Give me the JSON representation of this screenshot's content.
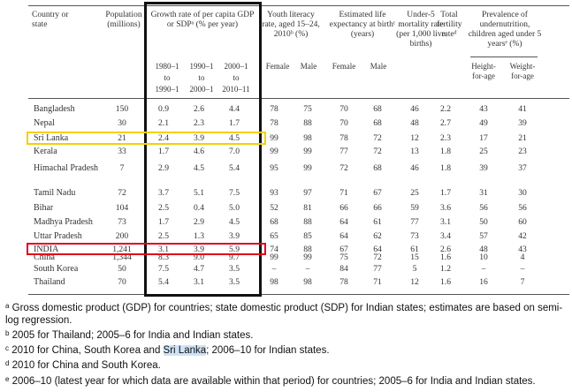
{
  "columns": {
    "country": "Country or state",
    "population": "Population (millions)",
    "growth": "Growth rate of per capita GDP or SDPᵃ (% per year)",
    "growth_periods": [
      "1980–1990",
      "1990–2000",
      "2000–2010"
    ],
    "growth_period_lines": [
      [
        "1980–1",
        "to",
        "1990–1"
      ],
      [
        "1990–1",
        "to",
        "2000–1"
      ],
      [
        "2000–1",
        "to",
        "2010–11"
      ]
    ],
    "literacy": "Youth literacy rate, aged 15–24, 2010ᵇ (%)",
    "literacy_sub": [
      "Female",
      "Male"
    ],
    "life": "Estimated life expectancy at birthᶜ (years)",
    "life_sub": [
      "Female",
      "Male"
    ],
    "u5": "Under-5 mortality rate (per 1,000 live births)",
    "tfr": "Total fertility rateᵈ",
    "undernutrition": "Prevalence of undernutrition, children aged under 5 yearsᵉ (%)",
    "undernutrition_sub": [
      "Height-for-age",
      "Weight-for-age"
    ]
  },
  "rows": [
    {
      "name": "Bangladesh",
      "pop": "150",
      "g1": "0.9",
      "g2": "2.6",
      "g3": "4.4",
      "litF": "78",
      "litM": "75",
      "lifeF": "70",
      "lifeM": "68",
      "u5": "46",
      "tfr": "2.2",
      "hfa": "43",
      "wfa": "41"
    },
    {
      "name": "Nepal",
      "pop": "30",
      "g1": "2.1",
      "g2": "2.3",
      "g3": "1.7",
      "litF": "78",
      "litM": "88",
      "lifeF": "70",
      "lifeM": "68",
      "u5": "48",
      "tfr": "2.7",
      "hfa": "49",
      "wfa": "39"
    },
    {
      "name": "Sri Lanka",
      "pop": "21",
      "g1": "2.4",
      "g2": "3.9",
      "g3": "4.5",
      "litF": "99",
      "litM": "98",
      "lifeF": "78",
      "lifeM": "72",
      "u5": "12",
      "tfr": "2.3",
      "hfa": "17",
      "wfa": "21"
    },
    {
      "name": "Kerala",
      "pop": "33",
      "g1": "1.7",
      "g2": "4.6",
      "g3": "7.0",
      "litF": "99",
      "litM": "99",
      "lifeF": "77",
      "lifeM": "72",
      "u5": "13",
      "tfr": "1.8",
      "hfa": "25",
      "wfa": "23"
    },
    {
      "name": "Himachal Pradesh",
      "pop": "7",
      "g1": "2.9",
      "g2": "4.5",
      "g3": "5.4",
      "litF": "95",
      "litM": "99",
      "lifeF": "72",
      "lifeM": "68",
      "u5": "46",
      "tfr": "1.8",
      "hfa": "39",
      "wfa": "37"
    },
    {
      "name": "Tamil Nadu",
      "pop": "72",
      "g1": "3.7",
      "g2": "5.1",
      "g3": "7.5",
      "litF": "93",
      "litM": "97",
      "lifeF": "71",
      "lifeM": "67",
      "u5": "25",
      "tfr": "1.7",
      "hfa": "31",
      "wfa": "30"
    },
    {
      "name": "Bihar",
      "pop": "104",
      "g1": "2.5",
      "g2": "0.4",
      "g3": "5.0",
      "litF": "52",
      "litM": "81",
      "lifeF": "66",
      "lifeM": "66",
      "u5": "59",
      "tfr": "3.6",
      "hfa": "56",
      "wfa": "56"
    },
    {
      "name": "Madhya Pradesh",
      "pop": "73",
      "g1": "1.7",
      "g2": "2.9",
      "g3": "4.5",
      "litF": "68",
      "litM": "88",
      "lifeF": "64",
      "lifeM": "61",
      "u5": "77",
      "tfr": "3.1",
      "hfa": "50",
      "wfa": "60"
    },
    {
      "name": "Uttar Pradesh",
      "pop": "200",
      "g1": "2.5",
      "g2": "1.3",
      "g3": "3.9",
      "litF": "65",
      "litM": "85",
      "lifeF": "64",
      "lifeM": "62",
      "u5": "73",
      "tfr": "3.4",
      "hfa": "57",
      "wfa": "42"
    },
    {
      "name": "INDIA",
      "pop": "1,241",
      "g1": "3.1",
      "g2": "3.9",
      "g3": "5.9",
      "litF": "74",
      "litM": "88",
      "lifeF": "67",
      "lifeM": "64",
      "u5": "61",
      "tfr": "2.6",
      "hfa": "48",
      "wfa": "43"
    },
    {
      "name": "China",
      "pop": "1,344",
      "g1": "8.3",
      "g2": "9.0",
      "g3": "9.7",
      "litF": "99",
      "litM": "99",
      "lifeF": "75",
      "lifeM": "72",
      "u5": "15",
      "tfr": "1.6",
      "hfa": "10",
      "wfa": "4"
    },
    {
      "name": "South Korea",
      "pop": "50",
      "g1": "7.5",
      "g2": "4.7",
      "g3": "3.5",
      "litF": "–",
      "litM": "–",
      "lifeF": "84",
      "lifeM": "77",
      "u5": "5",
      "tfr": "1.2",
      "hfa": "–",
      "wfa": "–"
    },
    {
      "name": "Thailand",
      "pop": "70",
      "g1": "5.4",
      "g2": "3.1",
      "g3": "3.5",
      "litF": "98",
      "litM": "98",
      "lifeF": "78",
      "lifeM": "71",
      "u5": "12",
      "tfr": "1.6",
      "hfa": "16",
      "wfa": "7"
    }
  ],
  "footnotes": {
    "a": "Gross domestic product (GDP) for countries; state domestic product (SDP) for Indian states; estimates are based on semi-log regression.",
    "a_line1": "Gross domestic product (GDP) for countries; state domestic product (SDP) for Indian states; estimates are based on semi-",
    "a_line2": "log regression.",
    "b": "2005 for Thailand; 2005–6 for India and Indian states.",
    "c_before": "2010 for China, South Korea and ",
    "c_highlight": "Sri Lanka",
    "c_after": "; 2006–10 for Indian states.",
    "d": "2010 for China and South Korea.",
    "e": "2006–10 (latest year for which data are available within that period) for countries; 2005–6 for India and Indian states."
  },
  "markers": [
    "a",
    "b",
    "c",
    "d",
    "e"
  ],
  "colors": {
    "growth_box": "#111111",
    "sri_lanka_box": "#f4d000",
    "india_box": "#e0001b",
    "highlight": "#cfe3f7"
  }
}
